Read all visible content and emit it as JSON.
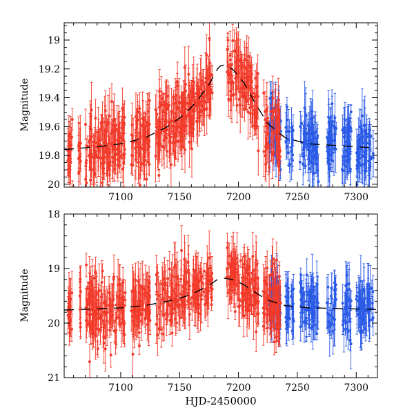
{
  "colors": {
    "red": "#f23a2a",
    "blue": "#2a5ae6",
    "model": "#000000",
    "axis": "#000000"
  },
  "chart_data": [
    {
      "type": "scatter",
      "panel": "top",
      "xlabel": "",
      "ylabel": "Magnitude",
      "xlim": [
        7052,
        7318
      ],
      "ylim": [
        20.02,
        18.88
      ],
      "x_ticks": [
        7100,
        7150,
        7200,
        7250,
        7300
      ],
      "x_tick_labels": [
        "7100",
        "7150",
        "7200",
        "7250",
        "7300"
      ],
      "y_ticks": [
        19.0,
        19.2,
        19.4,
        19.6,
        19.8,
        20.0
      ],
      "y_tick_labels": [
        "19",
        "19.2",
        "19.4",
        "19.6",
        "19.8",
        "20"
      ],
      "series": [
        {
          "name": "red",
          "role": "photometry",
          "x_range": [
            7055,
            7236
          ],
          "typical_error": 0.1
        },
        {
          "name": "blue",
          "role": "photometry",
          "x_range": [
            7226,
            7315
          ],
          "typical_error": 0.1
        }
      ],
      "model_curve": {
        "x": [
          7052,
          7080,
          7100,
          7120,
          7140,
          7155,
          7165,
          7175,
          7182,
          7186,
          7195,
          7205,
          7215,
          7225,
          7240,
          7260,
          7300,
          7318
        ],
        "y": [
          19.76,
          19.74,
          19.72,
          19.68,
          19.6,
          19.51,
          19.42,
          19.31,
          19.2,
          19.17,
          19.2,
          19.3,
          19.45,
          19.58,
          19.68,
          19.72,
          19.74,
          19.75
        ]
      }
    },
    {
      "type": "scatter",
      "panel": "bottom",
      "xlabel": "HJD-2450000",
      "ylabel": "Magnitude",
      "xlim": [
        7052,
        7318
      ],
      "ylim": [
        21.0,
        18.0
      ],
      "x_ticks": [
        7100,
        7150,
        7200,
        7250,
        7300
      ],
      "x_tick_labels": [
        "7100",
        "7150",
        "7200",
        "7250",
        "7300"
      ],
      "y_ticks": [
        18,
        19,
        20,
        21
      ],
      "y_tick_labels": [
        "18",
        "19",
        "20",
        "21"
      ],
      "series": [
        {
          "name": "red",
          "role": "photometry",
          "x_range": [
            7055,
            7236
          ],
          "typical_error": 0.25
        },
        {
          "name": "blue",
          "role": "photometry",
          "x_range": [
            7226,
            7315
          ],
          "typical_error": 0.25
        }
      ],
      "model_curve": {
        "x": [
          7052,
          7080,
          7100,
          7120,
          7140,
          7155,
          7165,
          7175,
          7182,
          7186,
          7195,
          7205,
          7215,
          7225,
          7240,
          7260,
          7300,
          7318
        ],
        "y": [
          19.76,
          19.74,
          19.72,
          19.68,
          19.6,
          19.51,
          19.42,
          19.31,
          19.2,
          19.17,
          19.2,
          19.3,
          19.45,
          19.58,
          19.68,
          19.72,
          19.74,
          19.75
        ]
      }
    }
  ]
}
